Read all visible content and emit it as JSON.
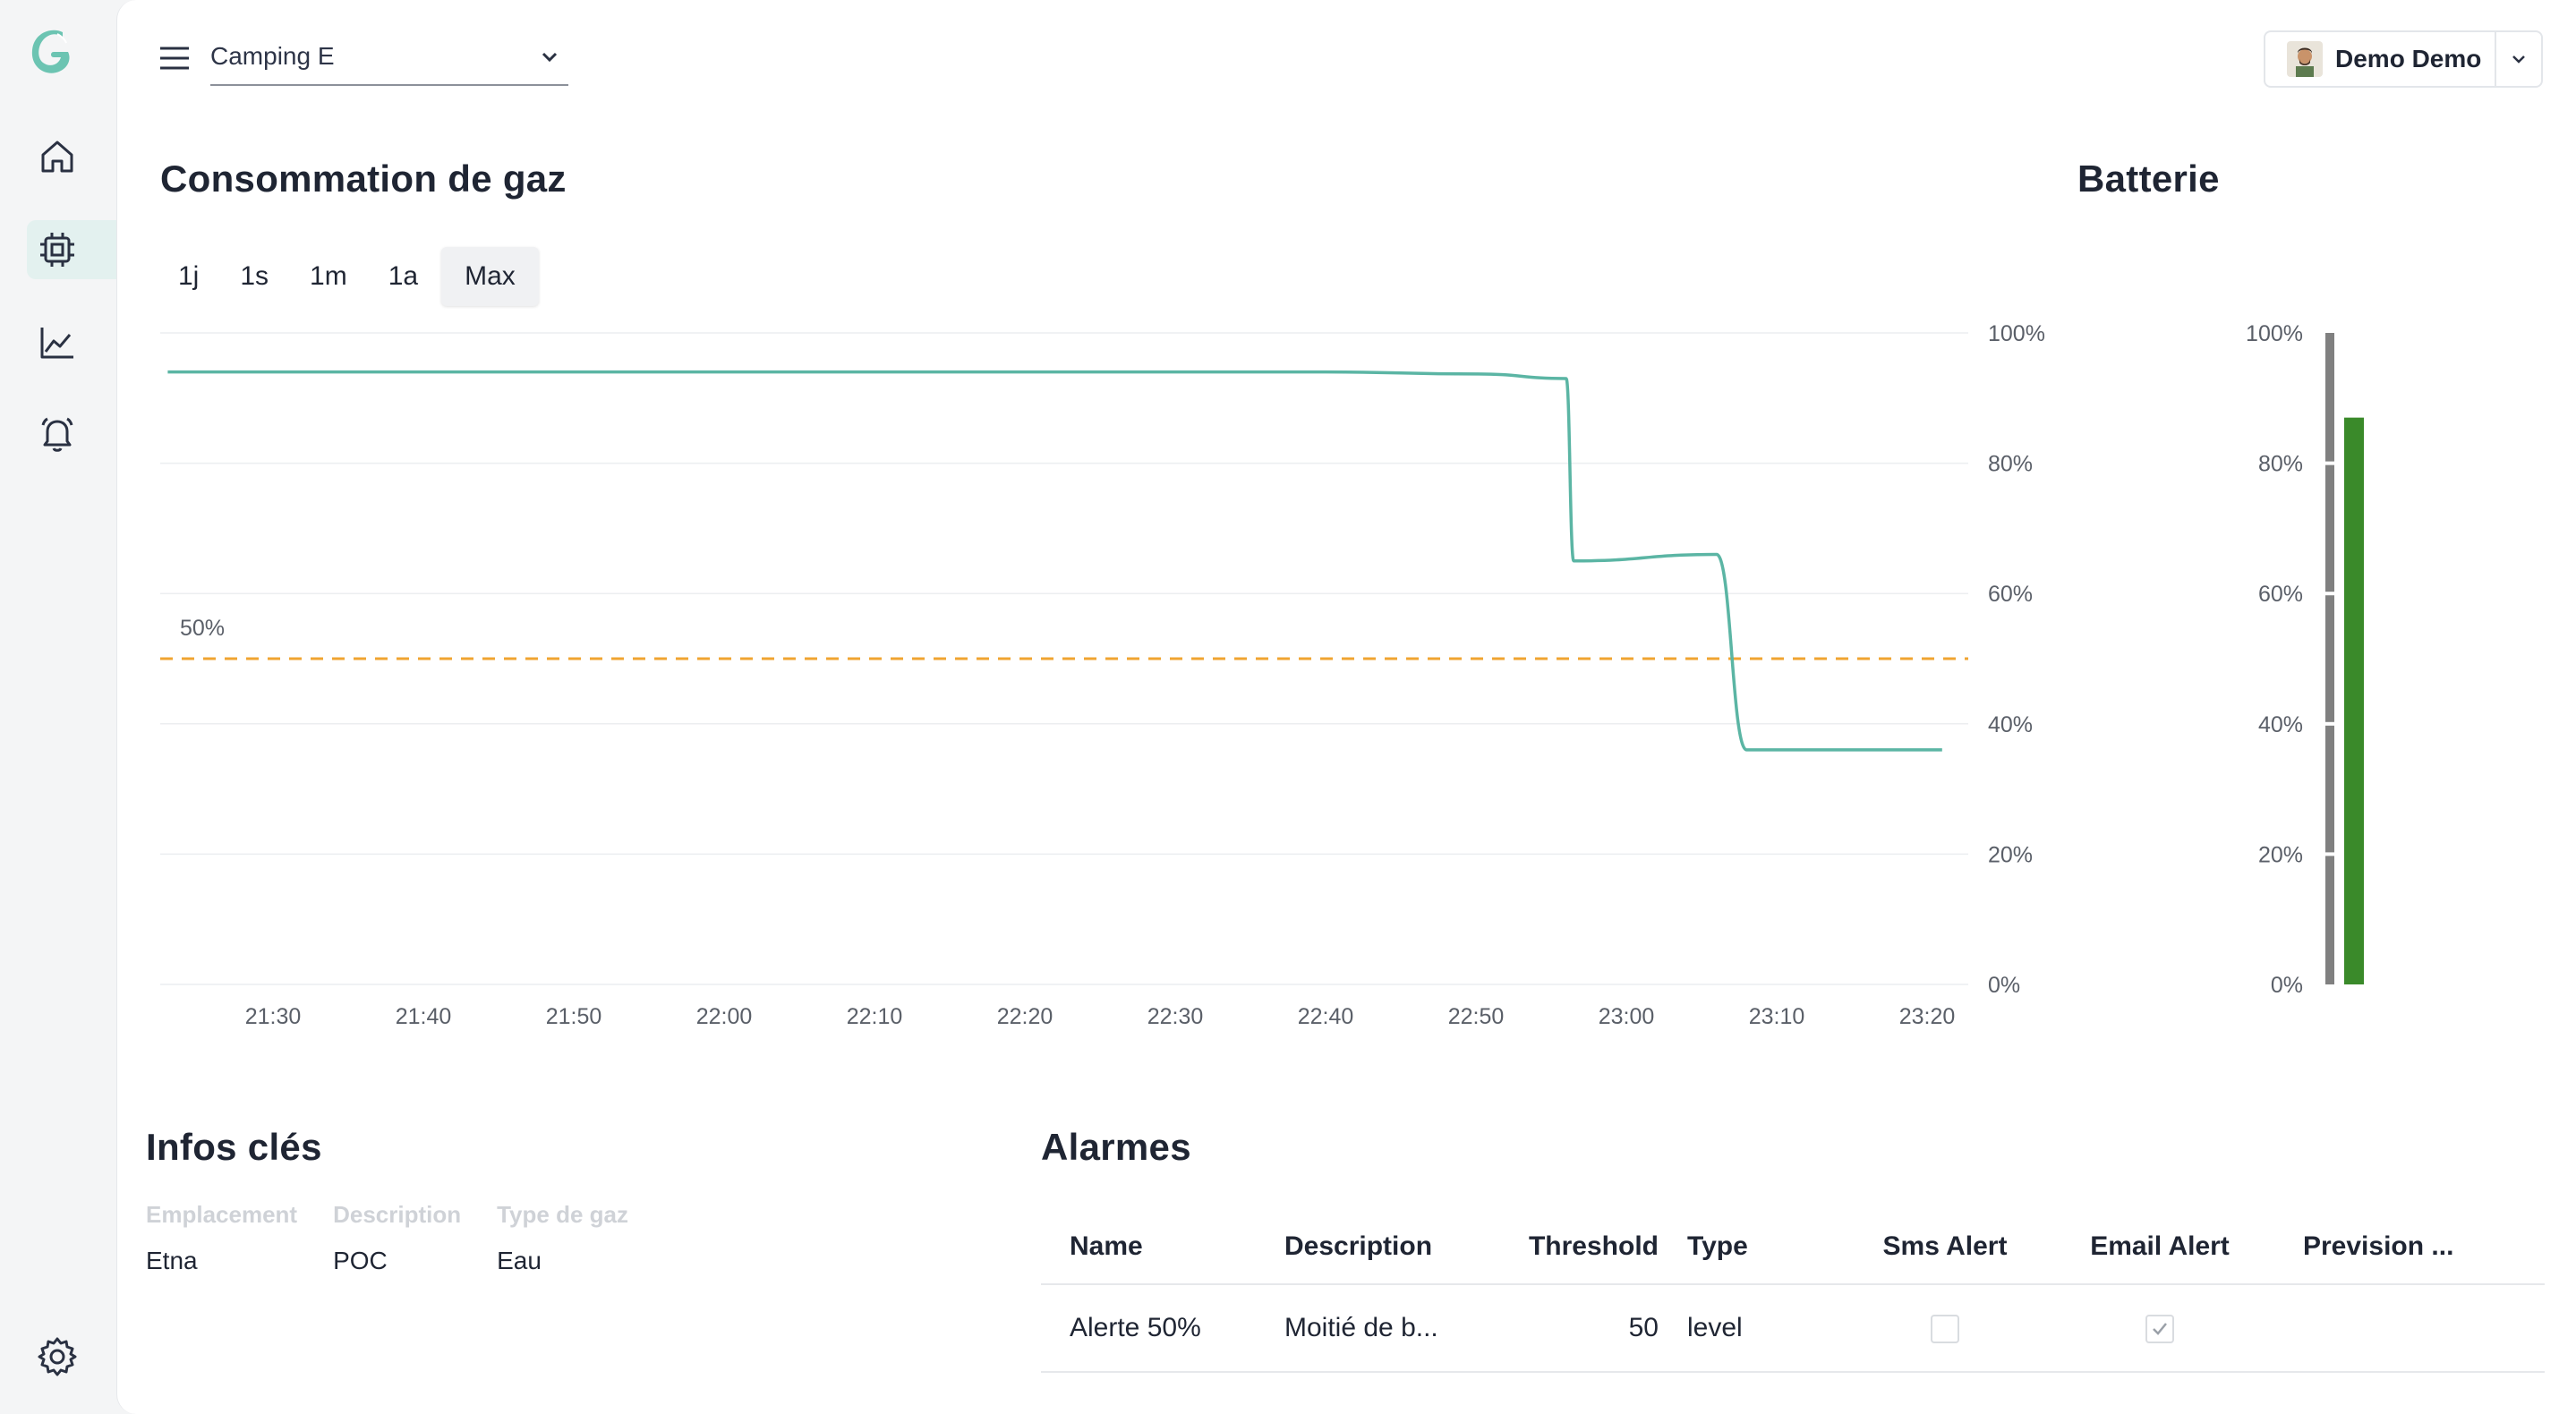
{
  "header": {
    "site": "Camping E",
    "user_name": "Demo Demo"
  },
  "sidebar": {
    "items": [
      {
        "icon": "home-icon"
      },
      {
        "icon": "chip-icon",
        "active": true
      },
      {
        "icon": "chart-line-icon"
      },
      {
        "icon": "bell-icon"
      }
    ],
    "settings_icon": "gear-icon"
  },
  "gas": {
    "title": "Consommation de gaz",
    "ranges": [
      "1j",
      "1s",
      "1m",
      "1a",
      "Max"
    ],
    "selected_range": "Max"
  },
  "battery": {
    "title": "Batterie"
  },
  "chart_data": [
    {
      "type": "line",
      "title": "Consommation de gaz",
      "x_ticks": [
        "21:30",
        "21:40",
        "21:50",
        "22:00",
        "22:10",
        "22:20",
        "22:30",
        "22:40",
        "22:50",
        "23:00",
        "23:10",
        "23:20"
      ],
      "y_ticks": [
        "0%",
        "20%",
        "40%",
        "60%",
        "80%",
        "100%"
      ],
      "ylim": [
        0,
        100
      ],
      "series": [
        {
          "color": "#5bb5a4",
          "points": [
            {
              "x": "21:23",
              "y": 94
            },
            {
              "x": "22:40",
              "y": 94
            },
            {
              "x": "22:50",
              "y": 93.7
            },
            {
              "x": "22:56",
              "y": 93
            },
            {
              "x": "22:56.5",
              "y": 65
            },
            {
              "x": "23:06",
              "y": 66
            },
            {
              "x": "23:08",
              "y": 36
            },
            {
              "x": "23:21",
              "y": 36
            }
          ]
        }
      ],
      "threshold": {
        "value": 50,
        "label": "50%",
        "color": "#f0a431",
        "style": "dashed"
      },
      "grid": true
    },
    {
      "type": "bar",
      "title": "Batterie",
      "y_ticks": [
        "0%",
        "20%",
        "40%",
        "60%",
        "80%",
        "100%"
      ],
      "ylim": [
        0,
        100
      ],
      "values": [
        87
      ],
      "color": "#3a8a2a",
      "background_color": "#808080"
    }
  ],
  "info": {
    "title": "Infos clés",
    "columns": [
      {
        "label": "Emplacement",
        "value": "Etna"
      },
      {
        "label": "Description",
        "value": "POC"
      },
      {
        "label": "Type de gaz",
        "value": "Eau"
      }
    ]
  },
  "alarms": {
    "title": "Alarmes",
    "headers": {
      "name": "Name",
      "description": "Description",
      "threshold": "Threshold",
      "type": "Type",
      "sms": "Sms Alert",
      "email": "Email Alert",
      "prevision": "Prevision ..."
    },
    "rows": [
      {
        "name": "Alerte 50%",
        "description": "Moitié de b...",
        "threshold": "50",
        "type": "level",
        "sms": false,
        "email": true,
        "prevision": ""
      }
    ]
  }
}
